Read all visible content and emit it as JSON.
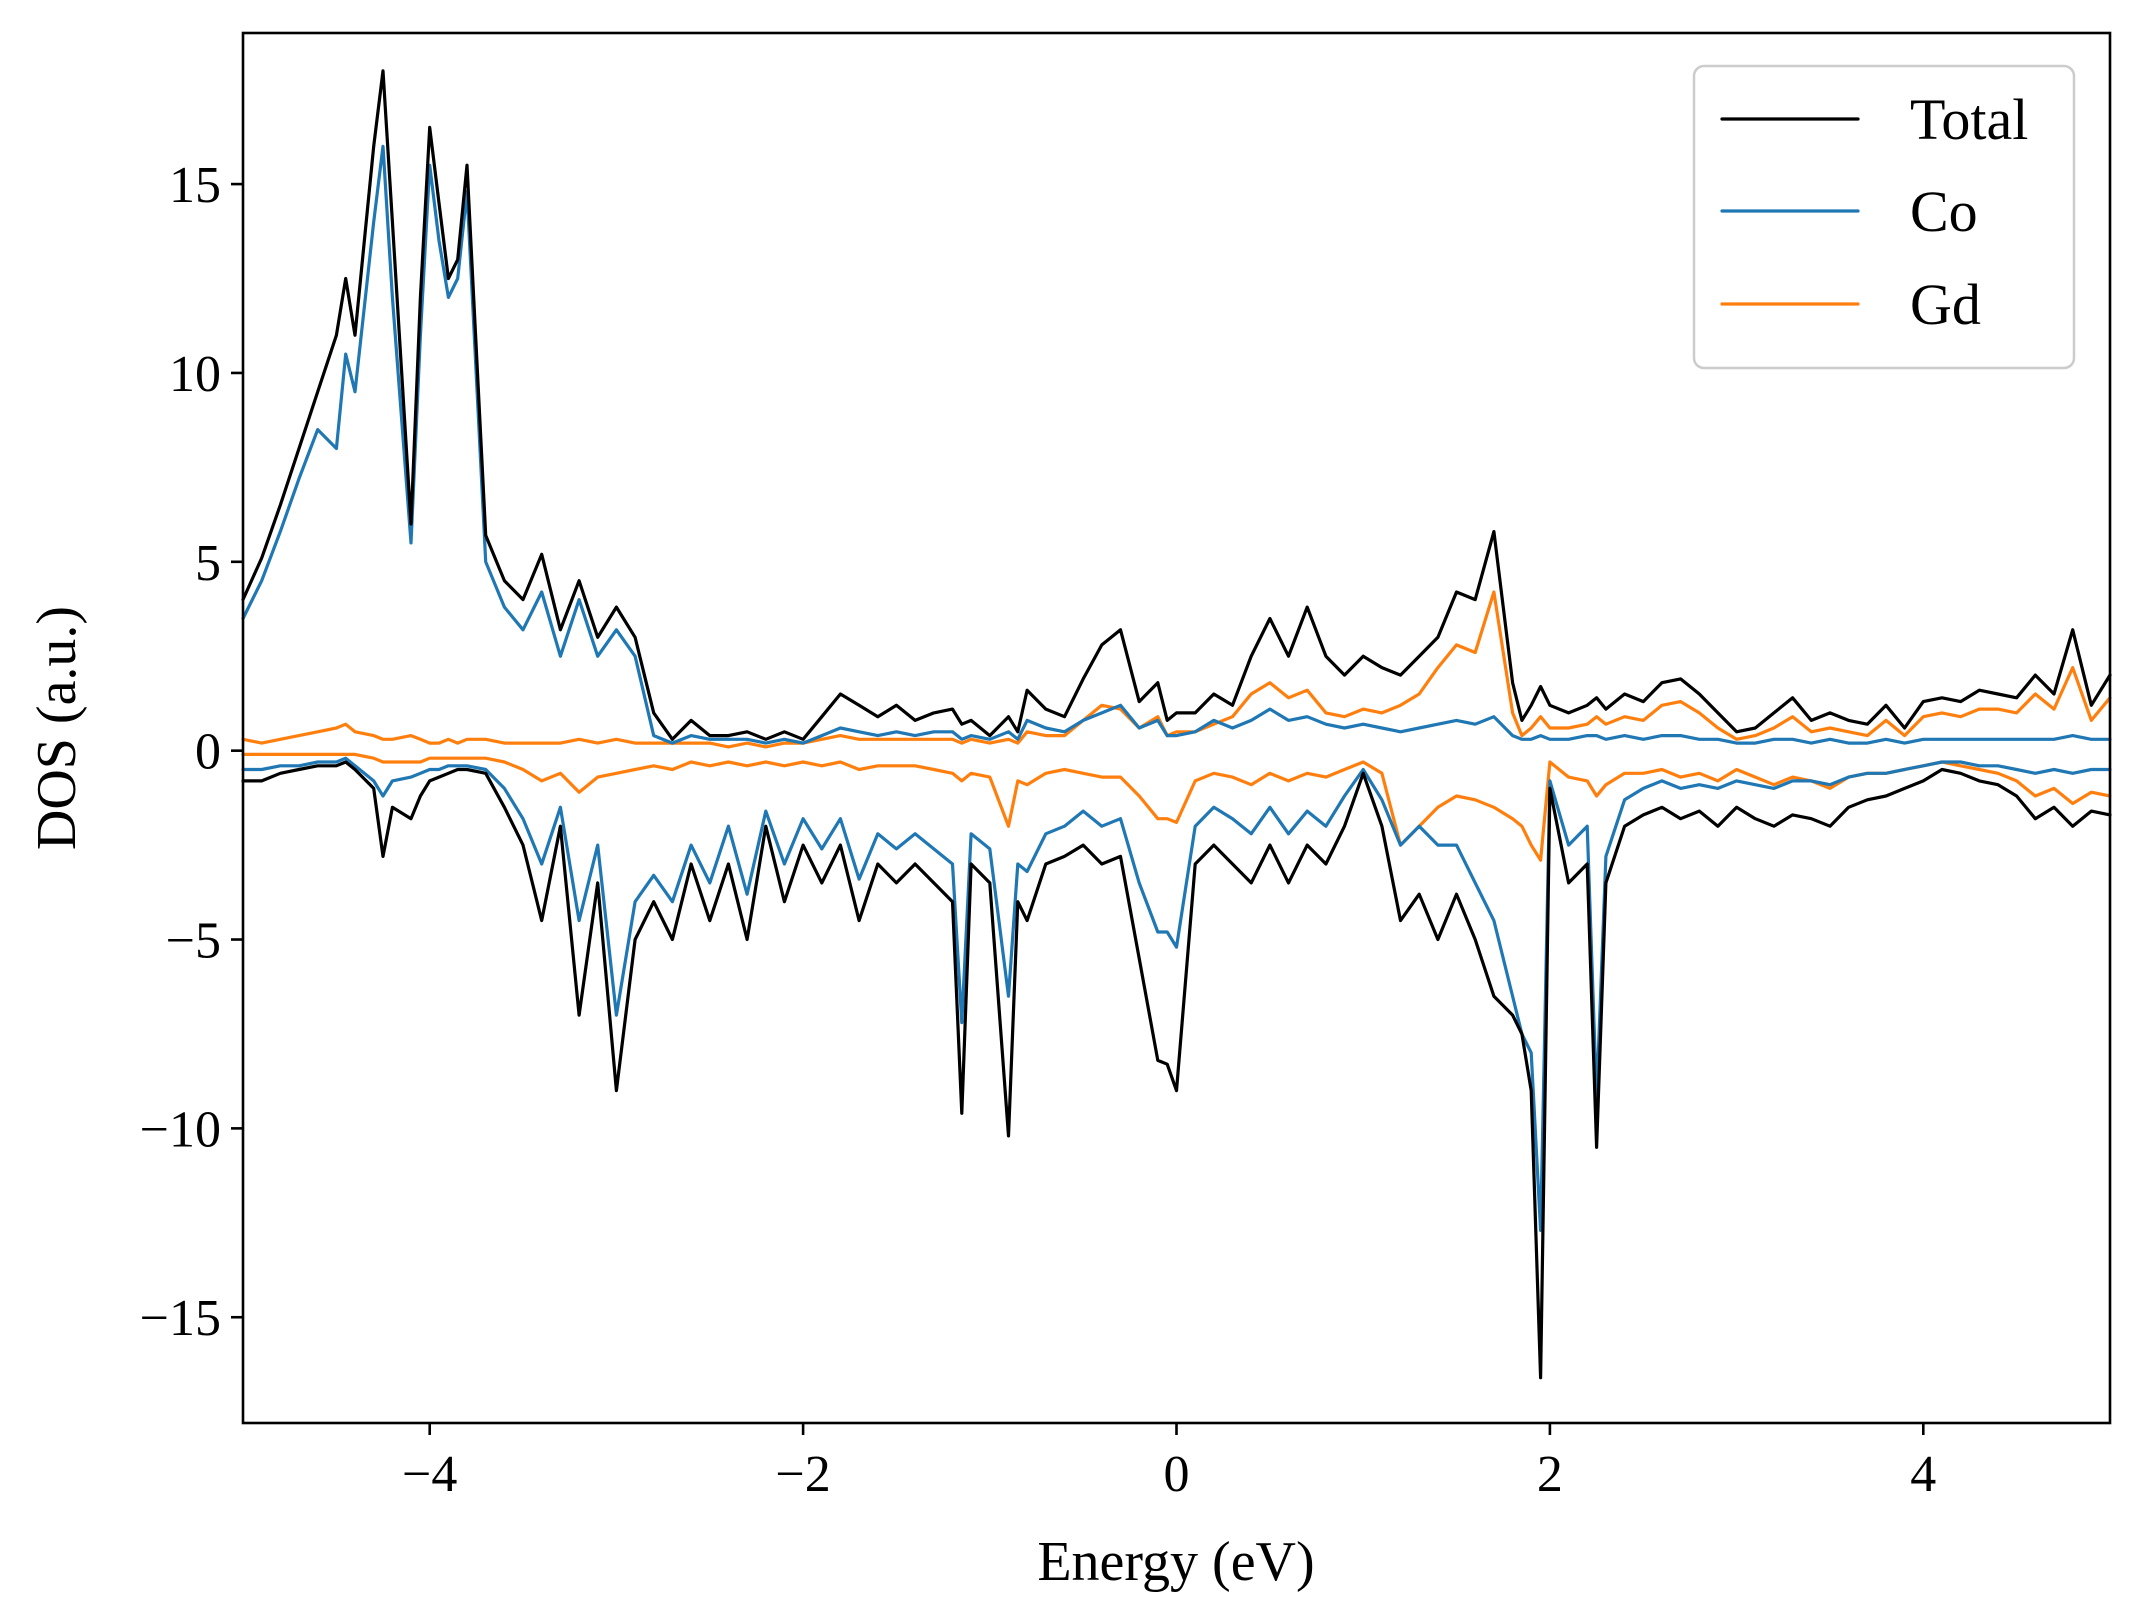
{
  "chart_data": {
    "type": "line",
    "xlabel": "Energy (eV)",
    "ylabel": "DOS (a.u.)",
    "xlim": [
      -5,
      5
    ],
    "ylim": [
      -17.8,
      19
    ],
    "xticks": [
      -4,
      -2,
      0,
      2,
      4
    ],
    "xtick_labels": [
      "−4",
      "−2",
      "0",
      "2",
      "4"
    ],
    "yticks": [
      -15,
      -10,
      -5,
      0,
      5,
      10,
      15
    ],
    "ytick_labels": [
      "−15",
      "−10",
      "−5",
      "0",
      "5",
      "10",
      "15"
    ],
    "grid": false,
    "legend_position": "top-right",
    "legend": [
      "Total",
      "Co",
      "Gd"
    ],
    "colors": {
      "Total": "#000000",
      "Co": "#1f77b4",
      "Gd": "#ff7f0e"
    },
    "x": [
      -5.0,
      -4.9,
      -4.8,
      -4.7,
      -4.6,
      -4.5,
      -4.45,
      -4.4,
      -4.3,
      -4.25,
      -4.2,
      -4.1,
      -4.05,
      -4.0,
      -3.95,
      -3.9,
      -3.85,
      -3.8,
      -3.7,
      -3.6,
      -3.5,
      -3.4,
      -3.3,
      -3.2,
      -3.1,
      -3.0,
      -2.9,
      -2.8,
      -2.7,
      -2.6,
      -2.5,
      -2.4,
      -2.3,
      -2.2,
      -2.1,
      -2.0,
      -1.9,
      -1.8,
      -1.7,
      -1.6,
      -1.5,
      -1.4,
      -1.3,
      -1.2,
      -1.15,
      -1.1,
      -1.0,
      -0.9,
      -0.85,
      -0.8,
      -0.7,
      -0.6,
      -0.5,
      -0.4,
      -0.3,
      -0.2,
      -0.1,
      -0.05,
      0.0,
      0.1,
      0.2,
      0.3,
      0.4,
      0.5,
      0.6,
      0.7,
      0.8,
      0.9,
      1.0,
      1.1,
      1.2,
      1.3,
      1.4,
      1.5,
      1.6,
      1.7,
      1.8,
      1.85,
      1.9,
      1.95,
      2.0,
      2.1,
      2.2,
      2.25,
      2.3,
      2.4,
      2.5,
      2.6,
      2.7,
      2.8,
      2.9,
      3.0,
      3.1,
      3.2,
      3.3,
      3.4,
      3.5,
      3.6,
      3.7,
      3.8,
      3.9,
      4.0,
      4.1,
      4.2,
      4.3,
      4.4,
      4.5,
      4.6,
      4.7,
      4.8,
      4.9,
      5.0
    ],
    "series": [
      {
        "name": "Total",
        "component": "spin up",
        "values": [
          4.0,
          5.1,
          6.5,
          8.0,
          9.5,
          11.0,
          12.5,
          11.0,
          16.0,
          18.0,
          14.0,
          6.0,
          12.0,
          16.5,
          14.5,
          12.5,
          13.0,
          15.5,
          5.7,
          4.5,
          4.0,
          5.2,
          3.2,
          4.5,
          3.0,
          3.8,
          3.0,
          1.0,
          0.3,
          0.8,
          0.4,
          0.4,
          0.5,
          0.3,
          0.5,
          0.3,
          0.9,
          1.5,
          1.2,
          0.9,
          1.2,
          0.8,
          1.0,
          1.1,
          0.7,
          0.8,
          0.4,
          0.9,
          0.5,
          1.6,
          1.1,
          0.9,
          1.9,
          2.8,
          3.2,
          1.3,
          1.8,
          0.8,
          1.0,
          1.0,
          1.5,
          1.2,
          2.5,
          3.5,
          2.5,
          3.8,
          2.5,
          2.0,
          2.5,
          2.2,
          2.0,
          2.5,
          3.0,
          4.2,
          4.0,
          5.8,
          1.8,
          0.8,
          1.2,
          1.7,
          1.2,
          1.0,
          1.2,
          1.4,
          1.1,
          1.5,
          1.3,
          1.8,
          1.9,
          1.5,
          1.0,
          0.5,
          0.6,
          1.0,
          1.4,
          0.8,
          1.0,
          0.8,
          0.7,
          1.2,
          0.6,
          1.3,
          1.4,
          1.3,
          1.6,
          1.5,
          1.4,
          2.0,
          1.5,
          3.2,
          1.2,
          2.0
        ]
      },
      {
        "name": "Co",
        "component": "spin up",
        "values": [
          3.5,
          4.5,
          5.8,
          7.2,
          8.5,
          8.0,
          10.5,
          9.5,
          14.0,
          16.0,
          12.0,
          5.5,
          11.0,
          15.5,
          13.5,
          12.0,
          12.5,
          14.8,
          5.0,
          3.8,
          3.2,
          4.2,
          2.5,
          4.0,
          2.5,
          3.2,
          2.5,
          0.4,
          0.2,
          0.4,
          0.3,
          0.3,
          0.3,
          0.2,
          0.3,
          0.2,
          0.4,
          0.6,
          0.5,
          0.4,
          0.5,
          0.4,
          0.5,
          0.5,
          0.3,
          0.4,
          0.3,
          0.5,
          0.3,
          0.8,
          0.6,
          0.5,
          0.8,
          1.0,
          1.2,
          0.6,
          0.8,
          0.4,
          0.4,
          0.5,
          0.8,
          0.6,
          0.8,
          1.1,
          0.8,
          0.9,
          0.7,
          0.6,
          0.7,
          0.6,
          0.5,
          0.6,
          0.7,
          0.8,
          0.7,
          0.9,
          0.4,
          0.3,
          0.3,
          0.4,
          0.3,
          0.3,
          0.4,
          0.4,
          0.3,
          0.4,
          0.3,
          0.4,
          0.4,
          0.3,
          0.3,
          0.2,
          0.2,
          0.3,
          0.3,
          0.2,
          0.3,
          0.2,
          0.2,
          0.3,
          0.2,
          0.3,
          0.3,
          0.3,
          0.3,
          0.3,
          0.3,
          0.3,
          0.3,
          0.4,
          0.3,
          0.3
        ]
      },
      {
        "name": "Gd",
        "component": "spin up",
        "values": [
          0.3,
          0.2,
          0.3,
          0.4,
          0.5,
          0.6,
          0.7,
          0.5,
          0.4,
          0.3,
          0.3,
          0.4,
          0.3,
          0.2,
          0.2,
          0.3,
          0.2,
          0.3,
          0.3,
          0.2,
          0.2,
          0.2,
          0.2,
          0.3,
          0.2,
          0.3,
          0.2,
          0.2,
          0.2,
          0.2,
          0.2,
          0.1,
          0.2,
          0.1,
          0.2,
          0.2,
          0.3,
          0.4,
          0.3,
          0.3,
          0.3,
          0.3,
          0.3,
          0.3,
          0.2,
          0.3,
          0.2,
          0.3,
          0.2,
          0.5,
          0.4,
          0.4,
          0.8,
          1.2,
          1.1,
          0.6,
          0.9,
          0.4,
          0.5,
          0.5,
          0.7,
          0.9,
          1.5,
          1.8,
          1.4,
          1.6,
          1.0,
          0.9,
          1.1,
          1.0,
          1.2,
          1.5,
          2.2,
          2.8,
          2.6,
          4.2,
          1.0,
          0.4,
          0.6,
          0.9,
          0.6,
          0.6,
          0.7,
          0.9,
          0.7,
          0.9,
          0.8,
          1.2,
          1.3,
          1.0,
          0.6,
          0.3,
          0.4,
          0.6,
          0.9,
          0.5,
          0.6,
          0.5,
          0.4,
          0.8,
          0.4,
          0.9,
          1.0,
          0.9,
          1.1,
          1.1,
          1.0,
          1.5,
          1.1,
          2.2,
          0.8,
          1.4
        ]
      },
      {
        "name": "Total",
        "component": "spin down",
        "values": [
          -0.8,
          -0.8,
          -0.6,
          -0.5,
          -0.4,
          -0.4,
          -0.3,
          -0.5,
          -1.0,
          -2.8,
          -1.5,
          -1.8,
          -1.2,
          -0.8,
          -0.7,
          -0.6,
          -0.5,
          -0.5,
          -0.6,
          -1.5,
          -2.5,
          -4.5,
          -2.0,
          -7.0,
          -3.5,
          -9.0,
          -5.0,
          -4.0,
          -5.0,
          -3.0,
          -4.5,
          -3.0,
          -5.0,
          -2.0,
          -4.0,
          -2.5,
          -3.5,
          -2.5,
          -4.5,
          -3.0,
          -3.5,
          -3.0,
          -3.5,
          -4.0,
          -9.6,
          -3.0,
          -3.5,
          -10.2,
          -4.0,
          -4.5,
          -3.0,
          -2.8,
          -2.5,
          -3.0,
          -2.8,
          -5.5,
          -8.2,
          -8.3,
          -9.0,
          -3.0,
          -2.5,
          -3.0,
          -3.5,
          -2.5,
          -3.5,
          -2.5,
          -3.0,
          -2.0,
          -0.6,
          -2.0,
          -4.5,
          -3.8,
          -5.0,
          -3.8,
          -5.0,
          -6.5,
          -7.0,
          -7.5,
          -9.0,
          -16.6,
          -1.0,
          -3.5,
          -3.0,
          -10.5,
          -3.5,
          -2.0,
          -1.7,
          -1.5,
          -1.8,
          -1.6,
          -2.0,
          -1.5,
          -1.8,
          -2.0,
          -1.7,
          -1.8,
          -2.0,
          -1.5,
          -1.3,
          -1.2,
          -1.0,
          -0.8,
          -0.5,
          -0.6,
          -0.8,
          -0.9,
          -1.2,
          -1.8,
          -1.5,
          -2.0,
          -1.6,
          -1.7
        ]
      },
      {
        "name": "Co",
        "component": "spin down",
        "values": [
          -0.5,
          -0.5,
          -0.4,
          -0.4,
          -0.3,
          -0.3,
          -0.2,
          -0.4,
          -0.8,
          -1.2,
          -0.8,
          -0.7,
          -0.6,
          -0.5,
          -0.5,
          -0.4,
          -0.4,
          -0.4,
          -0.5,
          -1.0,
          -1.8,
          -3.0,
          -1.5,
          -4.5,
          -2.5,
          -7.0,
          -4.0,
          -3.3,
          -4.0,
          -2.5,
          -3.5,
          -2.0,
          -3.8,
          -1.6,
          -3.0,
          -1.8,
          -2.6,
          -1.8,
          -3.4,
          -2.2,
          -2.6,
          -2.2,
          -2.6,
          -3.0,
          -7.2,
          -2.2,
          -2.6,
          -6.5,
          -3.0,
          -3.2,
          -2.2,
          -2.0,
          -1.6,
          -2.0,
          -1.8,
          -3.5,
          -4.8,
          -4.8,
          -5.2,
          -2.0,
          -1.5,
          -1.8,
          -2.2,
          -1.5,
          -2.2,
          -1.6,
          -2.0,
          -1.2,
          -0.5,
          -1.3,
          -2.5,
          -2.0,
          -2.5,
          -2.5,
          -3.5,
          -4.5,
          -6.5,
          -7.5,
          -8.0,
          -12.7,
          -0.8,
          -2.5,
          -2.0,
          -9.2,
          -2.8,
          -1.3,
          -1.0,
          -0.8,
          -1.0,
          -0.9,
          -1.0,
          -0.8,
          -0.9,
          -1.0,
          -0.8,
          -0.8,
          -0.9,
          -0.7,
          -0.6,
          -0.6,
          -0.5,
          -0.4,
          -0.3,
          -0.3,
          -0.4,
          -0.4,
          -0.5,
          -0.6,
          -0.5,
          -0.6,
          -0.5,
          -0.5
        ]
      },
      {
        "name": "Gd",
        "component": "spin down",
        "values": [
          -0.1,
          -0.1,
          -0.1,
          -0.1,
          -0.1,
          -0.1,
          -0.1,
          -0.1,
          -0.2,
          -0.3,
          -0.3,
          -0.3,
          -0.3,
          -0.2,
          -0.2,
          -0.2,
          -0.2,
          -0.2,
          -0.2,
          -0.3,
          -0.5,
          -0.8,
          -0.6,
          -1.1,
          -0.7,
          -0.6,
          -0.5,
          -0.4,
          -0.5,
          -0.3,
          -0.4,
          -0.3,
          -0.4,
          -0.3,
          -0.4,
          -0.3,
          -0.4,
          -0.3,
          -0.5,
          -0.4,
          -0.4,
          -0.4,
          -0.5,
          -0.6,
          -0.8,
          -0.6,
          -0.7,
          -2.0,
          -0.8,
          -0.9,
          -0.6,
          -0.5,
          -0.6,
          -0.7,
          -0.7,
          -1.2,
          -1.8,
          -1.8,
          -1.9,
          -0.8,
          -0.6,
          -0.7,
          -0.9,
          -0.6,
          -0.8,
          -0.6,
          -0.7,
          -0.5,
          -0.3,
          -0.6,
          -2.5,
          -2.0,
          -1.5,
          -1.2,
          -1.3,
          -1.5,
          -1.8,
          -2.0,
          -2.5,
          -2.9,
          -0.3,
          -0.7,
          -0.8,
          -1.2,
          -0.9,
          -0.6,
          -0.6,
          -0.5,
          -0.7,
          -0.6,
          -0.8,
          -0.5,
          -0.7,
          -0.9,
          -0.7,
          -0.8,
          -1.0,
          -0.7,
          -0.6,
          -0.6,
          -0.5,
          -0.4,
          -0.3,
          -0.4,
          -0.5,
          -0.6,
          -0.8,
          -1.2,
          -1.0,
          -1.4,
          -1.1,
          -1.2
        ]
      }
    ]
  }
}
